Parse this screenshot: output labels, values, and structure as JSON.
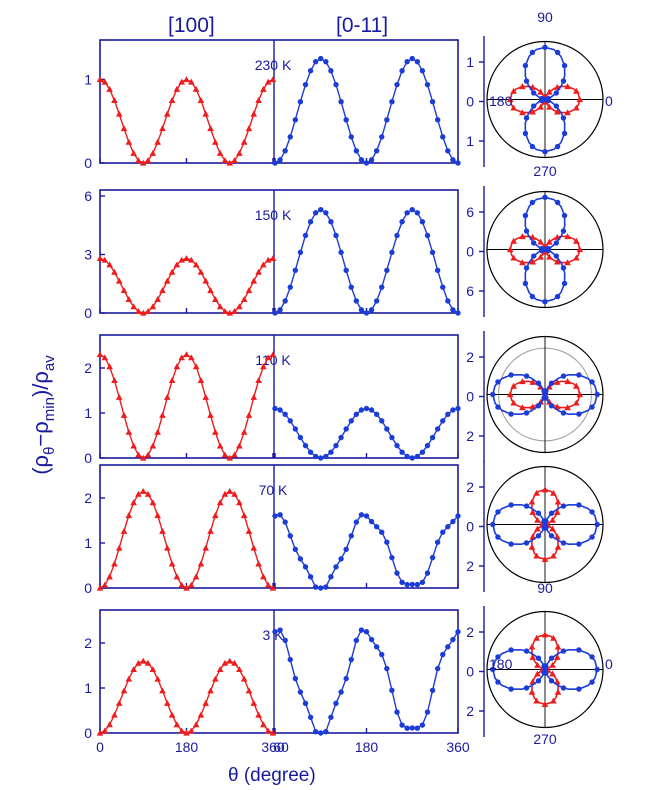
{
  "figure": {
    "col_left": "[100]",
    "col_right": "[0-11]",
    "xlabel": "θ (degree)",
    "ylabel": "(ρθ−ρmin)/ρav",
    "ylabel_parts": {
      "rho1": "(ρ",
      "sub1": "θ",
      "mid": "−ρ",
      "sub2": "min",
      "end": ")/ρ",
      "sub3": "av"
    },
    "xticks_left": [
      "0",
      "180",
      "360"
    ],
    "xticks_right": [
      "60",
      "180",
      "360"
    ],
    "polar_top_labels": {
      "top": "90",
      "left": "180",
      "right": "0",
      "bottom": "270"
    },
    "polar_p4_bottom": "90",
    "polar_p5_labels": {
      "left": "180",
      "right": "0",
      "bottom": "270"
    },
    "colors": {
      "axis": "#1a1aa0",
      "red": "#ee1c1c",
      "blue": "#1c3cd8"
    }
  },
  "chart_data": [
    {
      "type": "line",
      "temperature": "230 K",
      "series": [
        {
          "side": "[100]",
          "marker": "triangle",
          "x_range": [
            0,
            360
          ],
          "peaks_deg": [
            0,
            180,
            360
          ],
          "ymax": 1.0
        },
        {
          "side": "[0-11]",
          "marker": "circle",
          "x_range": [
            0,
            360
          ],
          "peaks_deg": [
            90,
            270
          ],
          "ymax": 1.25
        }
      ],
      "yticks_left": [
        "0",
        "1"
      ],
      "ylim_left": [
        0,
        1.4
      ],
      "yticks_right": [
        "1",
        "0",
        "1"
      ]
    },
    {
      "type": "line",
      "temperature": "150 K",
      "series": [
        {
          "side": "[100]",
          "marker": "triangle",
          "x_range": [
            0,
            360
          ],
          "peaks_deg": [
            0,
            180,
            360
          ],
          "ymax": 2.8
        },
        {
          "side": "[0-11]",
          "marker": "circle",
          "x_range": [
            0,
            360
          ],
          "peaks_deg": [
            90,
            270
          ],
          "ymax": 5.3
        }
      ],
      "yticks_left": [
        "0",
        "3",
        "6"
      ],
      "ylim_left": [
        0,
        6
      ],
      "yticks_right": [
        "6",
        "0",
        "6"
      ]
    },
    {
      "type": "line",
      "temperature": "110 K",
      "series": [
        {
          "side": "[100]",
          "marker": "triangle",
          "x_range": [
            0,
            360
          ],
          "peaks_deg": [
            0,
            180,
            360
          ],
          "ymax": 2.3
        },
        {
          "side": "[0-11]",
          "marker": "circle",
          "x_range": [
            0,
            360
          ],
          "peaks_deg": [
            0,
            180,
            360
          ],
          "ymax": 1.1
        }
      ],
      "yticks_left": [
        "0",
        "1",
        "2"
      ],
      "ylim_left": [
        0,
        2.6
      ],
      "yticks_right": [
        "2",
        "0",
        "2"
      ]
    },
    {
      "type": "line",
      "temperature": "70 K",
      "series": [
        {
          "side": "[100]",
          "marker": "triangle",
          "x_range": [
            0,
            360
          ],
          "peaks_deg": [
            90,
            270
          ],
          "ymax": 2.15
        },
        {
          "side": "[0-11]",
          "marker": "circle",
          "x_range": [
            0,
            360
          ],
          "peaks_deg": [
            0,
            180,
            360
          ],
          "ymax": 1.6
        }
      ],
      "yticks_left": [
        "0",
        "1",
        "2"
      ],
      "ylim_left": [
        0,
        2.6
      ],
      "yticks_right": [
        "2",
        "0",
        "2"
      ]
    },
    {
      "type": "line",
      "temperature": "3 K",
      "series": [
        {
          "side": "[100]",
          "marker": "triangle",
          "x_range": [
            0,
            360
          ],
          "peaks_deg": [
            90,
            270
          ],
          "ymax": 1.6
        },
        {
          "side": "[0-11]",
          "marker": "circle",
          "x_range": [
            0,
            360
          ],
          "peaks_deg": [
            0,
            180,
            360
          ],
          "ymax": 2.25
        }
      ],
      "yticks_left": [
        "0",
        "1",
        "2"
      ],
      "ylim_left": [
        0,
        2.6
      ],
      "yticks_right": [
        "2",
        "0",
        "2"
      ]
    }
  ]
}
